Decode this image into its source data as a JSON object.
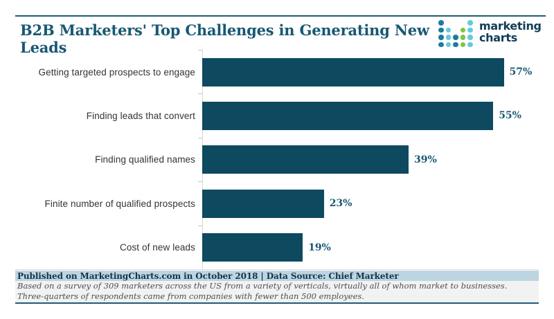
{
  "header": {
    "title": "B2B Marketers' Top Challenges in Generating New Leads",
    "title_color": "#175873",
    "logo": {
      "text_line1": "marketing",
      "text_line2": "charts",
      "text_color": "#123c55",
      "dot_colors": {
        "n": "#1e7ba0",
        "c": "#66c9dc",
        "g": "#84c341"
      },
      "dot_matrix": [
        "n...c",
        "nc.gc",
        "ncngc",
        "ncngc"
      ]
    }
  },
  "chart_data": {
    "type": "bar",
    "orientation": "horizontal",
    "title": "B2B Marketers' Top Challenges in Generating New Leads",
    "categories": [
      "Getting targeted prospects to engage",
      "Finding leads that convert",
      "Finding qualified names",
      "Finite number of qualified prospects",
      "Cost of new leads"
    ],
    "values": [
      57,
      55,
      39,
      23,
      19
    ],
    "value_labels": [
      "57%",
      "55%",
      "39%",
      "23%",
      "19%"
    ],
    "unit": "%",
    "xlim": [
      0,
      60
    ],
    "grid": false,
    "legend": "none",
    "bar_color": "#0d4a60",
    "value_color": "#175873",
    "category_color": "#333333"
  },
  "footer": {
    "published": "Published on MarketingCharts.com in October 2018 | Data Source: Chief Marketer",
    "published_bg": "#bdd5e1",
    "published_color": "#16324a",
    "note_line1": "Based on a survey of 309 marketers across the US from a variety of verticals, virtually all of whom market to businesses.",
    "note_line2": "Three-quarters of respondents came from companies with fewer than 500 employees.",
    "note_bg": "#f2f2f2",
    "note_color": "#4d4d4d",
    "rule_color": "#1e5b78"
  }
}
